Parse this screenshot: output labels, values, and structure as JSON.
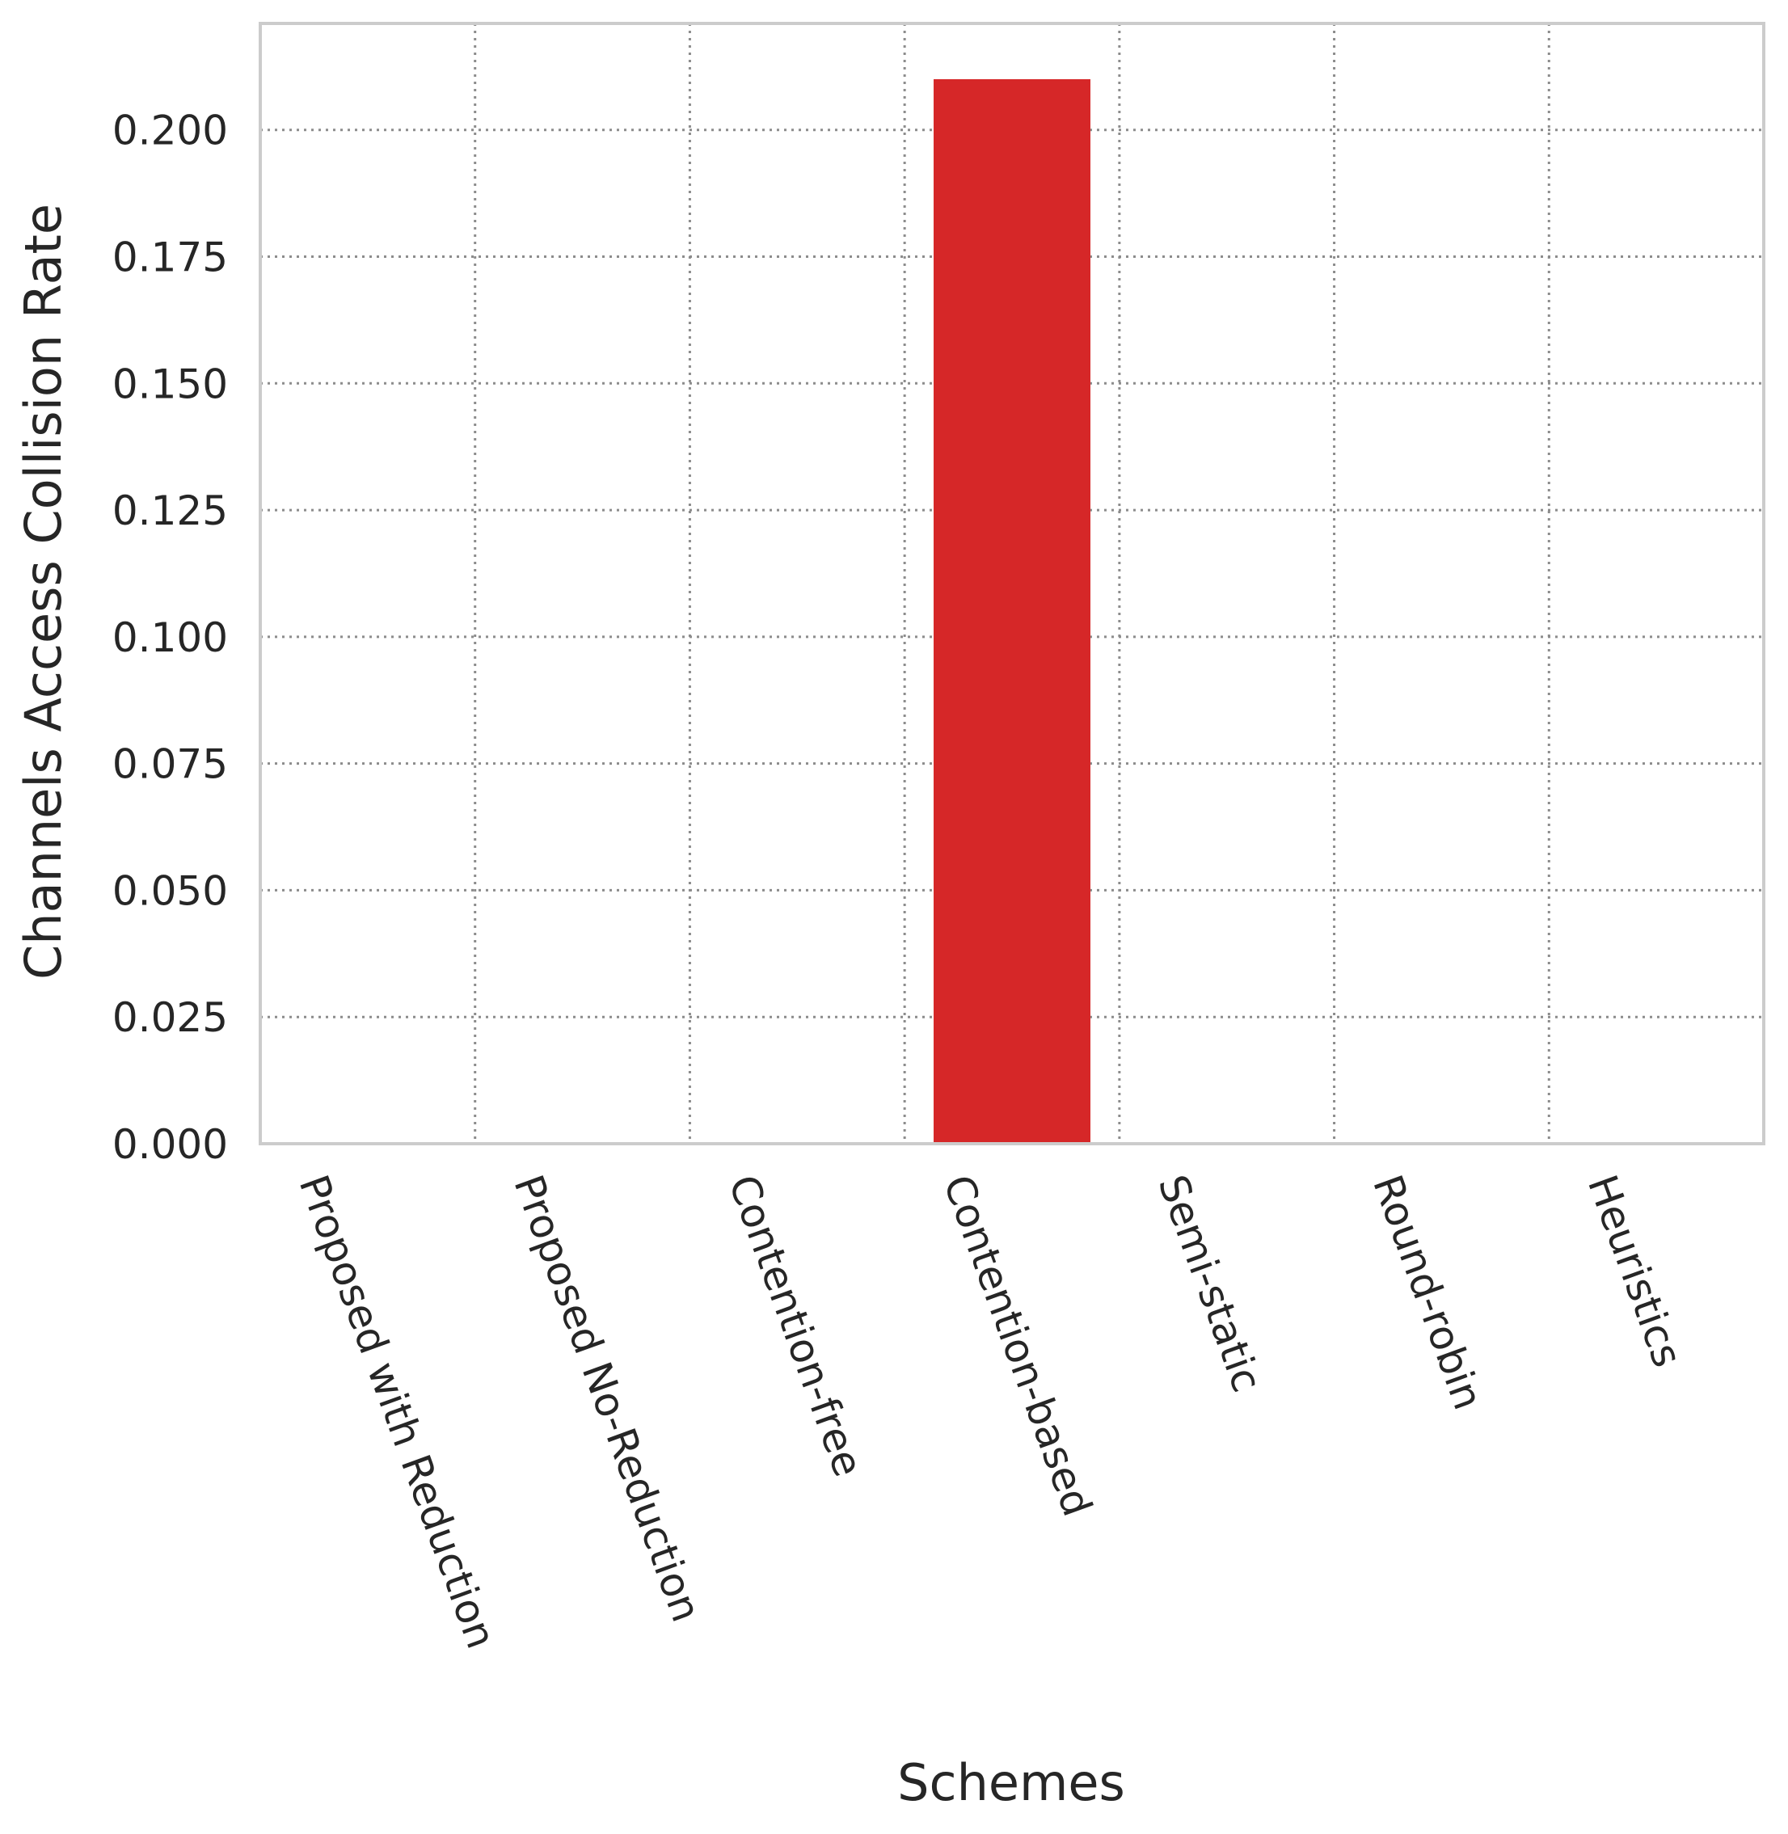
{
  "chart_data": {
    "type": "bar",
    "title": "",
    "xlabel": "Schemes",
    "ylabel": "Channels Access Collision Rate",
    "categories": [
      "Proposed with Reduction",
      "Proposed No-Reduction",
      "Contention-free",
      "Contention-based",
      "Semi-static",
      "Round-robin",
      "Heuristics"
    ],
    "values": [
      0,
      0,
      0,
      0.21,
      0,
      0,
      0
    ],
    "ylim": [
      0,
      0.221
    ],
    "yticks": [
      0.0,
      0.025,
      0.05,
      0.075,
      0.1,
      0.125,
      0.15,
      0.175,
      0.2
    ],
    "ytick_labels": [
      "0.000",
      "0.025",
      "0.050",
      "0.075",
      "0.100",
      "0.125",
      "0.150",
      "0.175",
      "0.200"
    ],
    "bar_color": "#d62728",
    "grid": true,
    "legend": "none"
  }
}
